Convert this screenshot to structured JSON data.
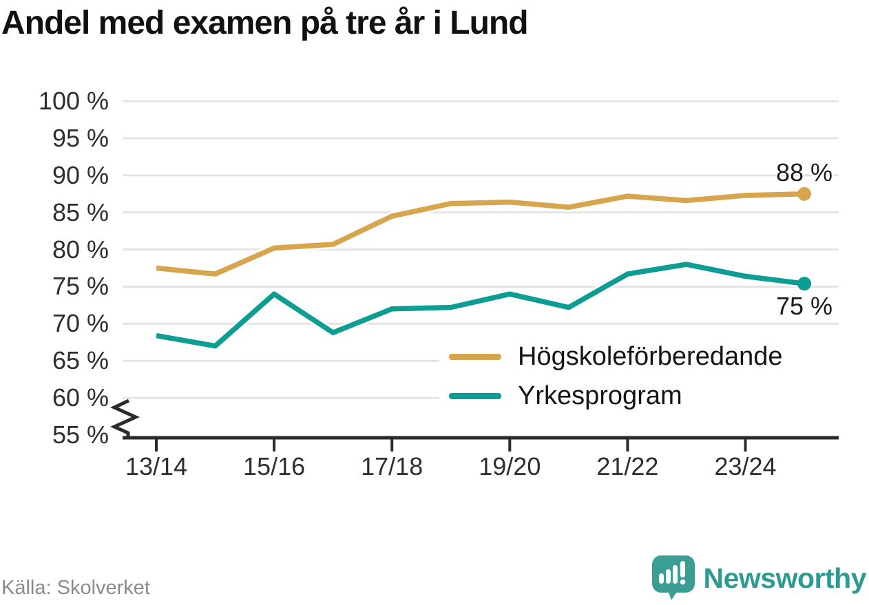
{
  "title": "Andel med examen på tre år i Lund",
  "source": "Källa: Skolverket",
  "brand": {
    "name": "Newsworthy",
    "icon": "newsworthy-speech-bubble-chart-icon",
    "color": "#2e9b93"
  },
  "chart_data": {
    "type": "line",
    "title": "Andel med examen på tre år i Lund",
    "x": [
      "13/14",
      "14/15",
      "15/16",
      "16/17",
      "17/18",
      "18/19",
      "19/20",
      "20/21",
      "21/22",
      "22/23",
      "23/24",
      "24/25"
    ],
    "x_tick_labels": [
      "13/14",
      "15/16",
      "17/18",
      "19/20",
      "21/22",
      "23/24"
    ],
    "series": [
      {
        "name": "Högskoleförberedande",
        "color": "#d7a54e",
        "values": [
          77.5,
          76.7,
          80.2,
          80.7,
          84.5,
          86.2,
          86.4,
          85.7,
          87.2,
          86.6,
          87.3,
          87.5
        ],
        "end_label": "88 %"
      },
      {
        "name": "Yrkesprogram",
        "color": "#0d9d93",
        "values": [
          68.4,
          67.0,
          74.0,
          68.8,
          72.0,
          72.2,
          74.0,
          72.2,
          76.7,
          78.0,
          76.4,
          75.4
        ],
        "end_label": "75 %"
      }
    ],
    "ylim": [
      55,
      100
    ],
    "y_ticks": [
      55,
      60,
      65,
      70,
      75,
      80,
      85,
      90,
      95,
      100
    ],
    "y_tick_suffix": " %",
    "axis_break": true,
    "grid": true,
    "legend_position": "inside-bottom-right"
  }
}
